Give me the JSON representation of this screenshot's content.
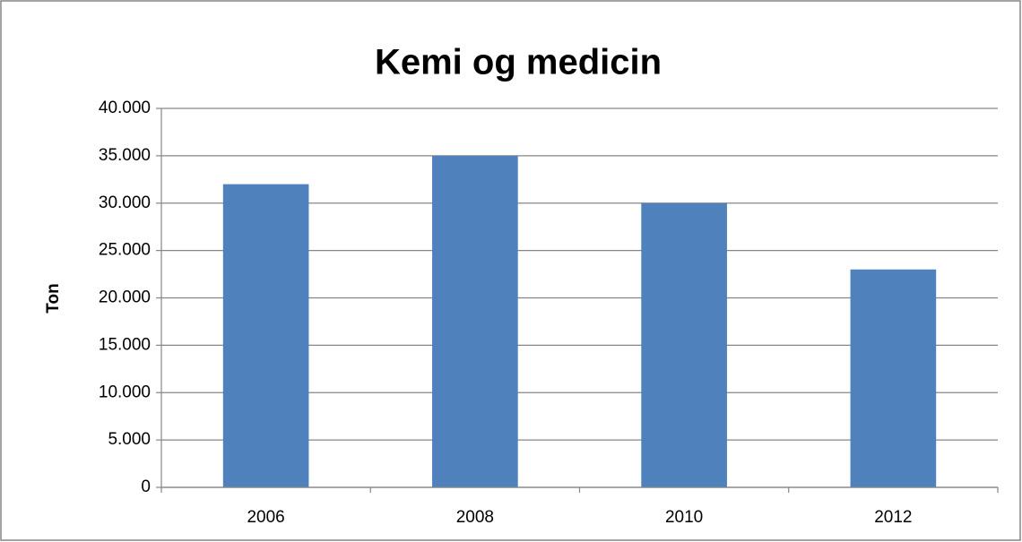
{
  "chart_data": {
    "type": "bar",
    "title": "Kemi og medicin",
    "y_label": "Ton",
    "categories": [
      "2006",
      "2008",
      "2010",
      "2012"
    ],
    "values": [
      32000,
      35000,
      30000,
      23000
    ],
    "color": "#4f81bd",
    "ylim": [
      0,
      40000
    ],
    "yticks": [
      0,
      {
        "value": 5000,
        "label": "5.000"
      },
      {
        "value": 10000,
        "label": "10.000"
      },
      {
        "value": 15000,
        "label": "15.000"
      },
      {
        "value": 20000,
        "label": "20.000"
      },
      {
        "value": 25000,
        "label": "25.000"
      },
      {
        "value": 30000,
        "label": "30.000"
      },
      {
        "value": 35000,
        "label": "35.000"
      },
      {
        "value": 40000,
        "label": "40.000"
      }
    ],
    "grid": true
  }
}
